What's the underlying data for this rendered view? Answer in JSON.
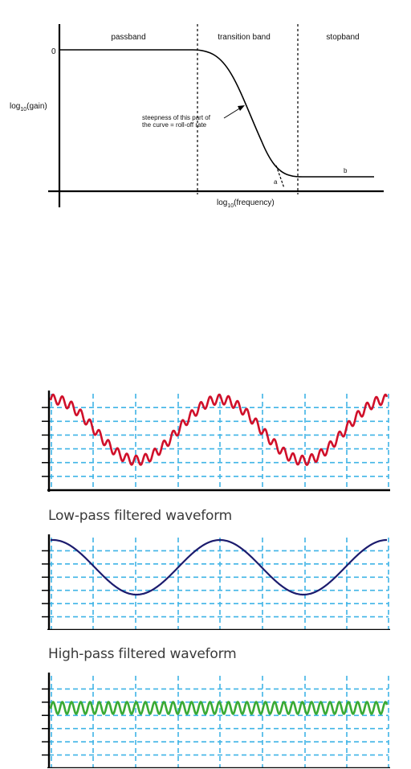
{
  "filter_diagram": {
    "band_labels": {
      "passband": "passband",
      "transition": "transition band",
      "stopband": "stopband"
    },
    "y_zero_label": "0",
    "y_axis_label": {
      "prefix": "log",
      "sub": "10",
      "suffix": "(gain)"
    },
    "x_axis_label": {
      "prefix": "log",
      "sub": "10",
      "suffix": "(frequency)"
    },
    "annotation_line1": "steepness of this part of",
    "annotation_line2": "the curve = roll-off rate",
    "point_a": "a",
    "point_b": "b"
  },
  "waveforms": {
    "lowpass_title": "Low-pass filtered waveform",
    "highpass_title": "High-pass filtered waveform",
    "colors": {
      "raw": "#d0102a",
      "lowpass": "#1c1c6e",
      "highpass": "#3aaa35",
      "grid": "#3fb4e6",
      "axis": "#000000"
    }
  }
}
